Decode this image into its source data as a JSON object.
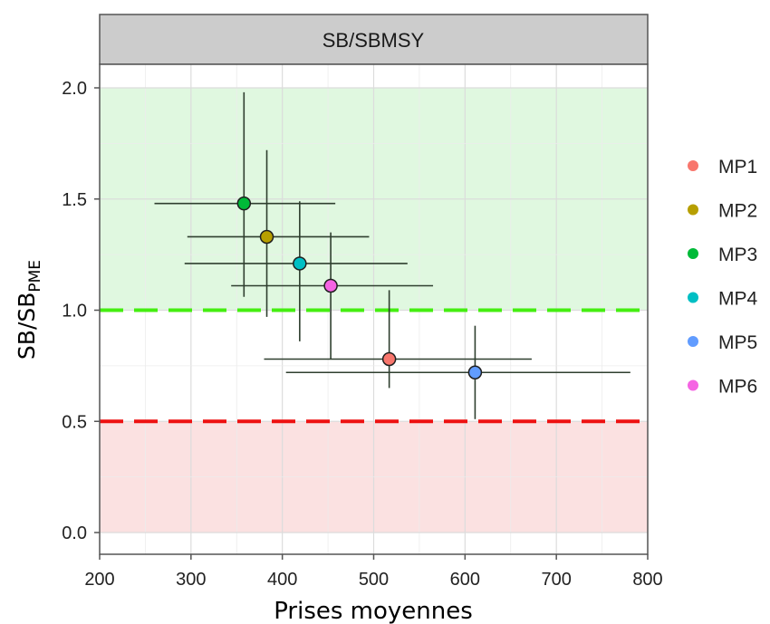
{
  "chart_data": {
    "type": "scatter",
    "facet_title": "SB/SBMSY",
    "xlabel": "Prises moyennes",
    "ylabel": {
      "main": "SB/SB",
      "sub": "PME"
    },
    "xlim": [
      200,
      800
    ],
    "ylim": [
      0,
      2
    ],
    "x_ticks": [
      "200",
      "300",
      "400",
      "500",
      "600",
      "700",
      "800"
    ],
    "y_ticks": [
      "0.0",
      "0.5",
      "1.0",
      "1.5",
      "2.0"
    ],
    "grid": true,
    "legend_position": "right",
    "reference_lines": [
      {
        "y": 1.0,
        "color": "#44ee11",
        "style": "dashed"
      },
      {
        "y": 0.5,
        "color": "#ee1111",
        "style": "dashed"
      }
    ],
    "zones": [
      {
        "y_from": 1.0,
        "y_to": 2.0,
        "color": "#e0f8e0"
      },
      {
        "y_from": 0.0,
        "y_to": 0.5,
        "color": "#fbe1e1"
      }
    ],
    "series": [
      {
        "name": "MP1",
        "color": "#f8766d",
        "x": 517,
        "y": 0.78,
        "x_low": 380,
        "x_high": 673,
        "y_low": 0.65,
        "y_high": 1.09
      },
      {
        "name": "MP2",
        "color": "#b79f00",
        "x": 383,
        "y": 1.33,
        "x_low": 296,
        "x_high": 495,
        "y_low": 0.97,
        "y_high": 1.72
      },
      {
        "name": "MP3",
        "color": "#00ba38",
        "x": 358,
        "y": 1.48,
        "x_low": 260,
        "x_high": 458,
        "y_low": 1.06,
        "y_high": 1.98
      },
      {
        "name": "MP4",
        "color": "#00bfc4",
        "x": 419,
        "y": 1.21,
        "x_low": 293,
        "x_high": 537,
        "y_low": 0.86,
        "y_high": 1.49
      },
      {
        "name": "MP5",
        "color": "#619cff",
        "x": 611,
        "y": 0.72,
        "x_low": 404,
        "x_high": 781,
        "y_low": 0.51,
        "y_high": 0.93
      },
      {
        "name": "MP6",
        "color": "#f564e3",
        "x": 453,
        "y": 1.11,
        "x_low": 344,
        "x_high": 565,
        "y_low": 0.78,
        "y_high": 1.35
      }
    ]
  }
}
